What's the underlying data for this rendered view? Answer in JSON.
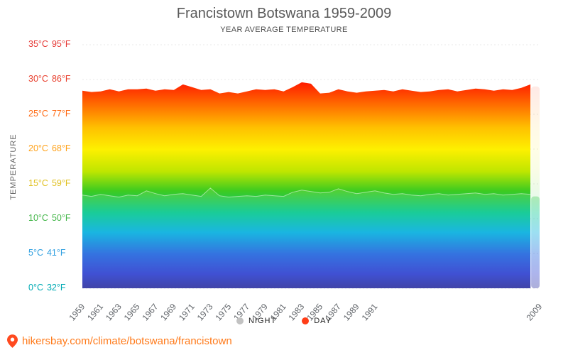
{
  "title": "Francistown Botswana 1959-2009",
  "subtitle": "YEAR AVERAGE TEMPERATURE",
  "y_axis_label": "TEMPERATURE",
  "legend": {
    "night_label": "NIGHT",
    "day_label": "DAY",
    "night_color": "#c2c2c2",
    "day_color": "#ff3d17"
  },
  "footer": {
    "url": "hikersbay.com/climate/botswana/francistown",
    "color": "#ff7a1a",
    "pin_color": "#ff4a1f"
  },
  "y_ticks": [
    {
      "t": 35,
      "c": "35°C",
      "f": "95°F",
      "color": "#e53935"
    },
    {
      "t": 30,
      "c": "30°C",
      "f": "86°F",
      "color": "#e8402e"
    },
    {
      "t": 25,
      "c": "25°C",
      "f": "77°F",
      "color": "#ff6a13"
    },
    {
      "t": 20,
      "c": "20°C",
      "f": "68°F",
      "color": "#ffa21a"
    },
    {
      "t": 15,
      "c": "15°C",
      "f": "59°F",
      "color": "#e0c020"
    },
    {
      "t": 10,
      "c": "10°C",
      "f": "50°F",
      "color": "#43b649"
    },
    {
      "t": 5,
      "c": "5°C",
      "f": "41°F",
      "color": "#2f9fe0"
    },
    {
      "t": 0,
      "c": "0°C",
      "f": "32°F",
      "color": "#00aab4"
    }
  ],
  "x_tick_years": [
    1959,
    1961,
    1963,
    1965,
    1967,
    1969,
    1971,
    1973,
    1975,
    1977,
    1979,
    1981,
    1983,
    1985,
    1987,
    1989,
    1991,
    2009
  ],
  "chart_data": {
    "type": "area",
    "title": "Francistown Botswana 1959-2009",
    "subtitle": "YEAR AVERAGE TEMPERATURE",
    "xlabel": "",
    "ylabel": "TEMPERATURE",
    "ylim": [
      0,
      35
    ],
    "grid": true,
    "legend_position": "bottom",
    "x": [
      1959,
      1960,
      1961,
      1962,
      1963,
      1964,
      1965,
      1966,
      1967,
      1968,
      1969,
      1970,
      1971,
      1972,
      1973,
      1974,
      1975,
      1976,
      1977,
      1978,
      1979,
      1980,
      1981,
      1982,
      1983,
      1984,
      1985,
      1986,
      1987,
      1988,
      1989,
      1990,
      1991,
      1992,
      1993,
      1994,
      1995,
      1996,
      1997,
      1998,
      1999,
      2000,
      2001,
      2002,
      2003,
      2004,
      2005,
      2006,
      2007,
      2008,
      2009
    ],
    "series": [
      {
        "name": "DAY",
        "values": [
          28.4,
          28.2,
          28.3,
          28.6,
          28.3,
          28.6,
          28.6,
          28.7,
          28.4,
          28.6,
          28.5,
          29.3,
          28.9,
          28.5,
          28.6,
          28.0,
          28.2,
          28.0,
          28.3,
          28.6,
          28.5,
          28.6,
          28.3,
          28.9,
          29.6,
          29.4,
          28.0,
          28.1,
          28.6,
          28.3,
          28.1,
          28.3,
          28.4,
          28.5,
          28.3,
          28.6,
          28.4,
          28.2,
          28.3,
          28.5,
          28.6,
          28.3,
          28.5,
          28.7,
          28.6,
          28.4,
          28.6,
          28.5,
          28.8,
          29.3,
          29.0
        ]
      },
      {
        "name": "NIGHT",
        "values": [
          13.4,
          13.2,
          13.5,
          13.3,
          13.1,
          13.4,
          13.3,
          14.0,
          13.6,
          13.3,
          13.5,
          13.6,
          13.4,
          13.2,
          14.4,
          13.3,
          13.1,
          13.2,
          13.3,
          13.2,
          13.4,
          13.3,
          13.2,
          13.8,
          14.1,
          13.9,
          13.7,
          13.8,
          14.3,
          13.9,
          13.6,
          13.8,
          14.0,
          13.7,
          13.5,
          13.6,
          13.4,
          13.3,
          13.5,
          13.6,
          13.4,
          13.5,
          13.6,
          13.7,
          13.5,
          13.6,
          13.4,
          13.5,
          13.6,
          13.5,
          13.2
        ]
      }
    ],
    "last_year_partial": true,
    "gradient_stops": [
      {
        "o": 0.0,
        "c": "#f00000"
      },
      {
        "o": 0.155,
        "c": "#ff1c00"
      },
      {
        "o": 0.26,
        "c": "#ff7900"
      },
      {
        "o": 0.34,
        "c": "#ffc000"
      },
      {
        "o": 0.43,
        "c": "#fdf000"
      },
      {
        "o": 0.52,
        "c": "#bfe600"
      },
      {
        "o": 0.6,
        "c": "#3dcb20"
      },
      {
        "o": 0.69,
        "c": "#00c78e"
      },
      {
        "o": 0.77,
        "c": "#00aede"
      },
      {
        "o": 0.86,
        "c": "#1e63dd"
      },
      {
        "o": 0.94,
        "c": "#2b3ecf"
      },
      {
        "o": 1.0,
        "c": "#2c2f9e"
      }
    ]
  }
}
